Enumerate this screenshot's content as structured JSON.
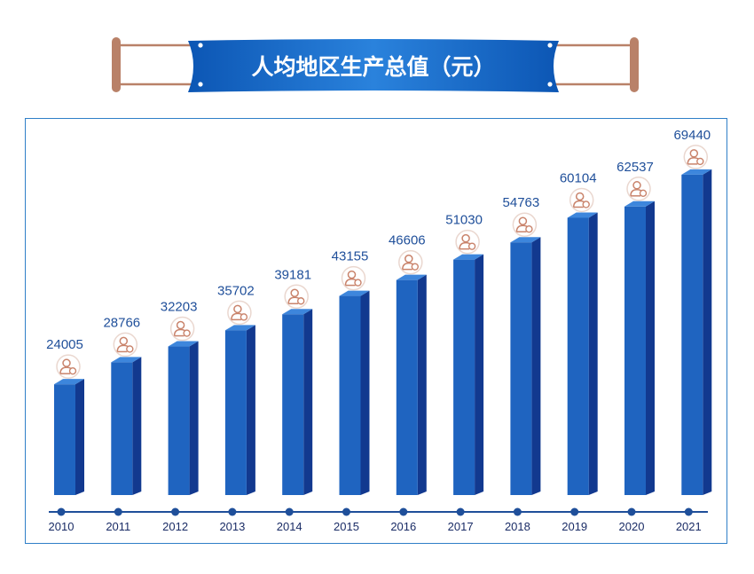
{
  "title": "人均地区生产总值（元）",
  "colors": {
    "bar_front": "#1f64c0",
    "bar_side": "#12398f",
    "bar_top": "#3d86dc",
    "value_text": "#1f4f9a",
    "axis_line": "#1f4f9a",
    "banner": "#1466c2",
    "person_icon": "#c9836b",
    "frame": "#2f7fc8"
  },
  "chart_data": {
    "type": "bar",
    "title": "人均地区生产总值（元）",
    "xlabel": "",
    "ylabel": "",
    "categories": [
      "2010",
      "2011",
      "2012",
      "2013",
      "2014",
      "2015",
      "2016",
      "2017",
      "2018",
      "2019",
      "2020",
      "2021"
    ],
    "series": [
      {
        "values": [
          24005,
          28766,
          32203,
          35702,
          39181,
          43155,
          46606,
          51030,
          54763,
          60104,
          62537,
          69440
        ]
      }
    ],
    "data_labels": [
      "24005",
      "28766",
      "32203",
      "35702",
      "39181",
      "43155",
      "46606",
      "51030",
      "54763",
      "60104",
      "62537",
      "69440"
    ],
    "grid": false,
    "legend": "none"
  }
}
